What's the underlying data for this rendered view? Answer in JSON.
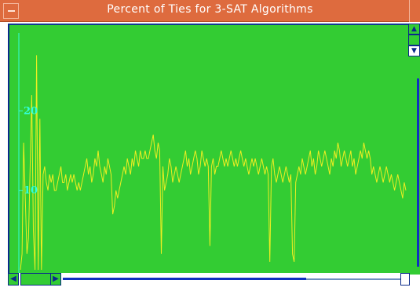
{
  "window": {
    "title": "Percent of Ties for 3-SAT Algorithms"
  },
  "colors": {
    "titlebar": "#de6b3e",
    "plot_background": "#33cc33",
    "series_line": "#eeee22",
    "axis": "#33ffdd",
    "scrollbar": "#0a2a8a"
  },
  "icons": {
    "window_menu": "window-menu-icon",
    "maximize": "maximize-icon",
    "scroll_up": "arrow-up-icon",
    "scroll_down": "arrow-down-icon",
    "scroll_left": "arrow-left-icon",
    "scroll_right": "arrow-right-icon"
  },
  "chart_data": {
    "type": "line",
    "title": "Percent of Ties for 3-SAT Algorithms",
    "xlabel": "",
    "ylabel": "",
    "ylim": [
      0,
      30
    ],
    "yticks": [
      10,
      20
    ],
    "ytick_labels": [
      "10",
      "20"
    ],
    "grid": false,
    "series": [
      {
        "values": [
          0,
          2,
          16,
          9,
          2,
          4,
          13,
          22,
          5,
          0,
          27,
          0,
          19,
          0,
          12,
          13,
          11,
          10,
          12,
          11,
          12,
          10,
          10,
          11,
          12,
          13,
          11,
          11,
          12,
          10,
          11,
          12,
          11,
          12,
          11,
          10,
          11,
          10,
          11,
          12,
          13,
          14,
          12,
          13,
          11,
          12,
          14,
          13,
          15,
          13,
          12,
          11,
          13,
          12,
          14,
          13,
          12,
          7,
          8,
          10,
          9,
          10,
          11,
          12,
          13,
          12,
          14,
          13,
          12,
          14,
          13,
          15,
          14,
          13,
          15,
          14,
          14,
          15,
          14,
          14,
          15,
          16,
          17,
          15,
          14,
          16,
          15,
          2,
          13,
          10,
          11,
          12,
          14,
          13,
          11,
          12,
          13,
          12,
          11,
          12,
          13,
          14,
          15,
          13,
          14,
          12,
          13,
          14,
          15,
          14,
          12,
          13,
          15,
          14,
          13,
          14,
          13,
          3,
          13,
          14,
          12,
          13,
          13,
          14,
          15,
          14,
          13,
          14,
          13,
          14,
          15,
          14,
          13,
          14,
          13,
          14,
          15,
          14,
          13,
          14,
          13,
          12,
          13,
          14,
          13,
          14,
          13,
          12,
          13,
          14,
          13,
          12,
          13,
          12,
          1,
          13,
          14,
          12,
          11,
          12,
          13,
          12,
          11,
          12,
          13,
          12,
          11,
          12,
          2,
          1,
          11,
          12,
          13,
          12,
          14,
          13,
          12,
          13,
          14,
          15,
          13,
          14,
          12,
          13,
          15,
          14,
          13,
          14,
          15,
          14,
          13,
          12,
          14,
          13,
          15,
          14,
          16,
          15,
          13,
          14,
          15,
          14,
          13,
          14,
          15,
          13,
          14,
          12,
          13,
          14,
          15,
          14,
          16,
          15,
          14,
          15,
          14,
          12,
          13,
          12,
          11,
          12,
          13,
          12,
          11,
          12,
          13,
          12,
          11,
          12,
          11,
          10,
          11,
          12,
          11,
          10,
          9,
          11,
          10
        ]
      }
    ]
  }
}
